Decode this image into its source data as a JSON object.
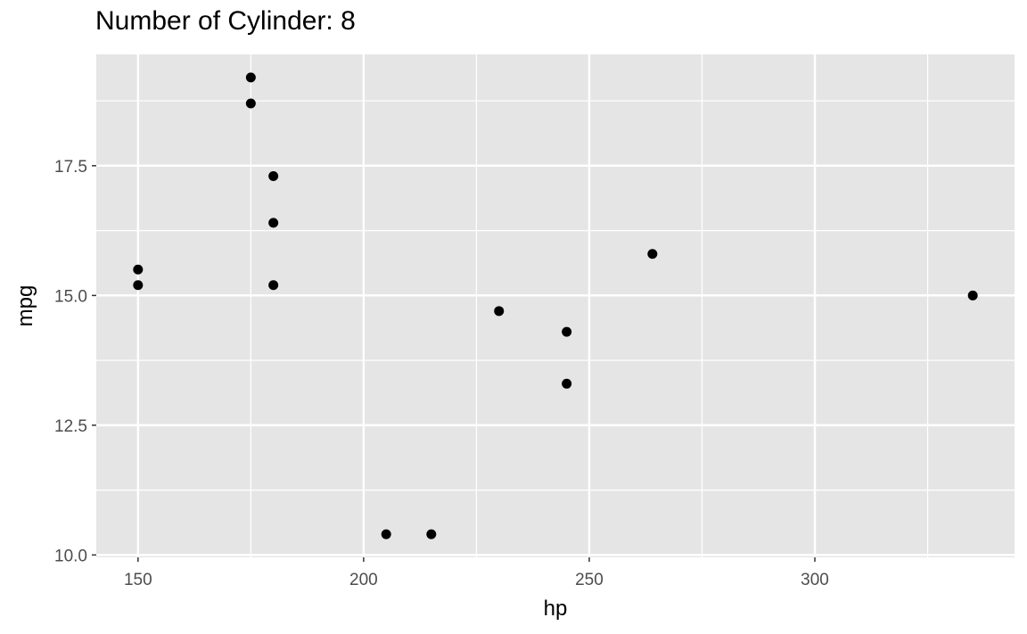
{
  "chart_data": {
    "type": "scatter",
    "title": "Number of Cylinder: 8",
    "xlabel": "hp",
    "ylabel": "mpg",
    "xlim": [
      140.75,
      344.25
    ],
    "ylim": [
      9.955,
      19.645
    ],
    "x_ticks": [
      150,
      200,
      250,
      300
    ],
    "x_tick_labels": [
      "150",
      "200",
      "250",
      "300"
    ],
    "y_ticks": [
      10.0,
      12.5,
      15.0,
      17.5
    ],
    "y_tick_labels": [
      "10.0",
      "12.5",
      "15.0",
      "17.5"
    ],
    "grid": true,
    "points": [
      {
        "x": 175,
        "y": 18.7
      },
      {
        "x": 245,
        "y": 14.3
      },
      {
        "x": 180,
        "y": 16.4
      },
      {
        "x": 180,
        "y": 17.3
      },
      {
        "x": 180,
        "y": 15.2
      },
      {
        "x": 205,
        "y": 10.4
      },
      {
        "x": 215,
        "y": 10.4
      },
      {
        "x": 230,
        "y": 14.7
      },
      {
        "x": 150,
        "y": 15.5
      },
      {
        "x": 150,
        "y": 15.2
      },
      {
        "x": 245,
        "y": 13.3
      },
      {
        "x": 175,
        "y": 19.2
      },
      {
        "x": 264,
        "y": 15.8
      },
      {
        "x": 335,
        "y": 15.0
      }
    ],
    "colors": {
      "panel": "#e5e5e5",
      "grid": "#ffffff",
      "point": "#000000",
      "tick_text": "#4d4d4d"
    }
  }
}
